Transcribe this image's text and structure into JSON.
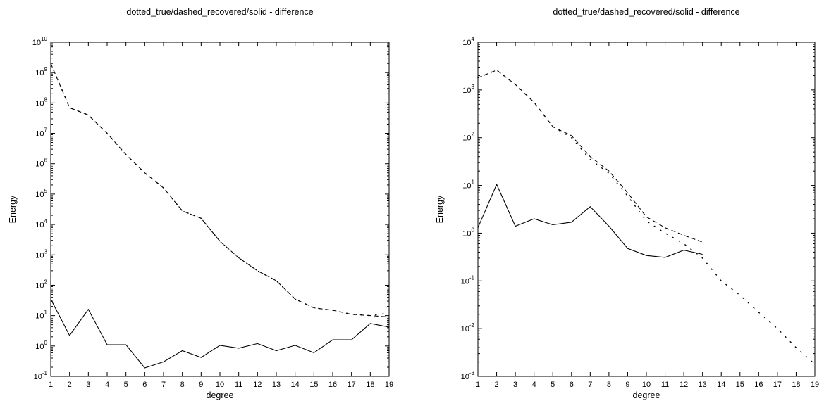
{
  "chart_data": [
    {
      "type": "line",
      "title": "dotted_true/dashed_recovered/solid - difference",
      "xlabel": "degree",
      "ylabel": "Energy",
      "y_scale": "log",
      "xlim": [
        1,
        19
      ],
      "ylim": [
        0.1,
        10000000000
      ],
      "x_ticks": [
        "1",
        "2",
        "3",
        "4",
        "5",
        "6",
        "7",
        "8",
        "9",
        "10",
        "11",
        "12",
        "13",
        "14",
        "15",
        "16",
        "17",
        "18",
        "19"
      ],
      "y_ticks": [
        {
          "base": "10",
          "exp": "-1"
        },
        {
          "base": "10",
          "exp": "0"
        },
        {
          "base": "10",
          "exp": "1"
        },
        {
          "base": "10",
          "exp": "2"
        },
        {
          "base": "10",
          "exp": "3"
        },
        {
          "base": "10",
          "exp": "4"
        },
        {
          "base": "10",
          "exp": "5"
        },
        {
          "base": "10",
          "exp": "6"
        },
        {
          "base": "10",
          "exp": "7"
        },
        {
          "base": "10",
          "exp": "8"
        },
        {
          "base": "10",
          "exp": "9"
        },
        {
          "base": "10",
          "exp": "10"
        }
      ],
      "series": [
        {
          "style": "dotted",
          "x": [
            1,
            2,
            3,
            4,
            5,
            6,
            7,
            8,
            9,
            10,
            11,
            12,
            13,
            14,
            15,
            16,
            17,
            18,
            19
          ],
          "values": [
            2000000000,
            70000000,
            40000000,
            10000000,
            2000000,
            500000,
            160000,
            28000,
            16000,
            2800,
            800,
            300,
            140,
            35,
            18,
            15,
            11,
            10,
            12
          ]
        },
        {
          "style": "dashed",
          "x": [
            1,
            2,
            3,
            4,
            5,
            6,
            7,
            8,
            9,
            10,
            11,
            12,
            13,
            14,
            15,
            16,
            17,
            18,
            19
          ],
          "values": [
            2000000000,
            70000000,
            40000000,
            10000000,
            2000000,
            500000,
            160000,
            28000,
            16000,
            2800,
            800,
            300,
            140,
            35,
            18,
            15,
            11,
            10,
            9
          ]
        },
        {
          "style": "solid",
          "x": [
            1,
            2,
            3,
            4,
            5,
            6,
            7,
            8,
            9,
            10,
            11,
            12,
            13,
            14,
            15,
            16,
            17,
            18,
            19
          ],
          "values": [
            35,
            2.2,
            16,
            1.1,
            1.1,
            0.19,
            0.3,
            0.7,
            0.42,
            1.05,
            0.85,
            1.2,
            0.7,
            1.05,
            0.6,
            1.6,
            1.6,
            5.5,
            4.2
          ]
        }
      ]
    },
    {
      "type": "line",
      "title": "dotted_true/dashed_recovered/solid - difference",
      "xlabel": "degree",
      "ylabel": "Energy",
      "y_scale": "log",
      "xlim": [
        1,
        19
      ],
      "ylim": [
        0.001,
        10000
      ],
      "x_ticks": [
        "1",
        "2",
        "3",
        "4",
        "5",
        "6",
        "7",
        "8",
        "9",
        "10",
        "11",
        "12",
        "13",
        "14",
        "15",
        "16",
        "17",
        "18",
        "19"
      ],
      "y_ticks": [
        {
          "base": "10",
          "exp": "-3"
        },
        {
          "base": "10",
          "exp": "-2"
        },
        {
          "base": "10",
          "exp": "-1"
        },
        {
          "base": "10",
          "exp": "0"
        },
        {
          "base": "10",
          "exp": "1"
        },
        {
          "base": "10",
          "exp": "2"
        },
        {
          "base": "10",
          "exp": "3"
        },
        {
          "base": "10",
          "exp": "4"
        }
      ],
      "series": [
        {
          "style": "dotted",
          "x": [
            1,
            2,
            3,
            4,
            5,
            6,
            7,
            8,
            9,
            10,
            11,
            12,
            13,
            14,
            15,
            16,
            17,
            18,
            19
          ],
          "values": [
            1800,
            2600,
            1300,
            550,
            170,
            100,
            35,
            18,
            6,
            1.8,
            1.0,
            0.6,
            0.3,
            0.1,
            0.05,
            0.022,
            0.01,
            0.004,
            0.0018
          ]
        },
        {
          "style": "dashed",
          "x": [
            1,
            2,
            3,
            4,
            5,
            6,
            7,
            8,
            9,
            10,
            11,
            12,
            13
          ],
          "values": [
            1800,
            2600,
            1300,
            550,
            170,
            110,
            40,
            20,
            7,
            2.2,
            1.3,
            0.9,
            0.65
          ]
        },
        {
          "style": "solid",
          "x": [
            1,
            2,
            3,
            4,
            5,
            6,
            7,
            8,
            9,
            10,
            11,
            12,
            13
          ],
          "values": [
            1.3,
            10.5,
            1.4,
            2.0,
            1.5,
            1.7,
            3.6,
            1.4,
            0.48,
            0.34,
            0.31,
            0.44,
            0.36
          ]
        }
      ]
    }
  ]
}
